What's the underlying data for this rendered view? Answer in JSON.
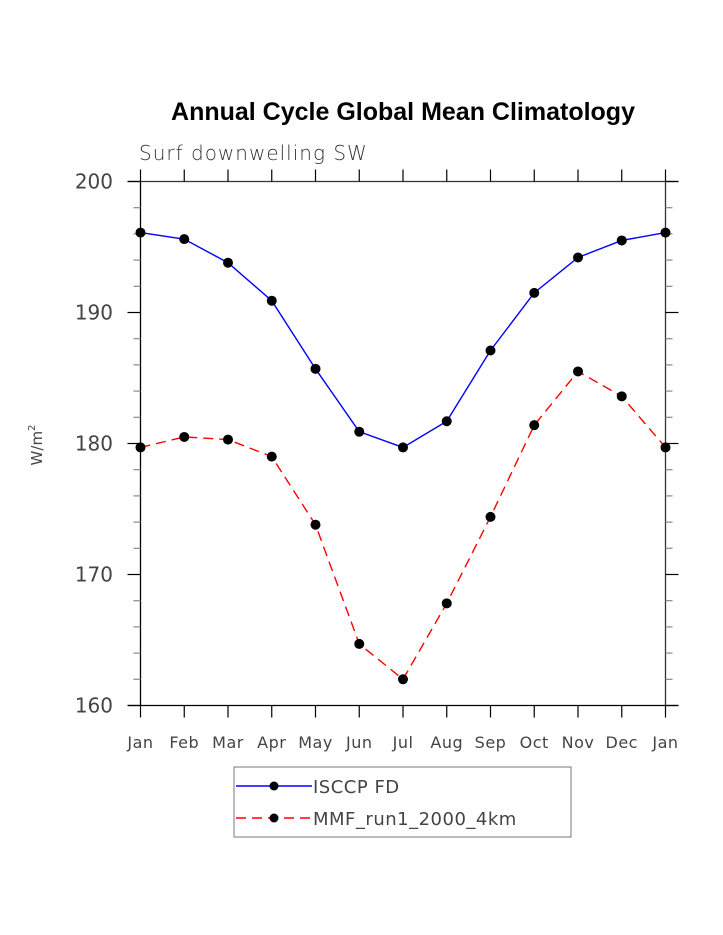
{
  "chart_data": {
    "type": "line",
    "title": "Annual Cycle Global Mean Climatology",
    "subtitle": "Surf downwelling SW",
    "xlabel": "",
    "ylabel": "W/m",
    "ylabel_superscript": "2",
    "categories": [
      "Jan",
      "Feb",
      "Mar",
      "Apr",
      "May",
      "Jun",
      "Jul",
      "Aug",
      "Sep",
      "Oct",
      "Nov",
      "Dec",
      "Jan"
    ],
    "ylim": [
      160,
      200
    ],
    "yticks": [
      160,
      170,
      180,
      190,
      200
    ],
    "ytick_labels": [
      "160",
      "170",
      "180",
      "190",
      "200"
    ],
    "yminor_step": 2,
    "grid": false,
    "legend_position": "bottom-center",
    "series": [
      {
        "name": "ISCCP FD",
        "color": "#0000ff",
        "style": "solid",
        "marker": "filled-circle",
        "values": [
          196.1,
          195.6,
          193.8,
          190.9,
          185.7,
          180.9,
          179.7,
          181.7,
          187.1,
          191.5,
          194.2,
          195.5,
          196.1
        ]
      },
      {
        "name": "MMF_run1_2000_4km",
        "color": "#ff0000",
        "style": "dashed",
        "marker": "filled-circle",
        "values": [
          179.7,
          180.5,
          180.3,
          179.0,
          173.8,
          164.7,
          162.0,
          167.8,
          174.4,
          181.4,
          185.5,
          183.6,
          179.7
        ]
      }
    ]
  }
}
